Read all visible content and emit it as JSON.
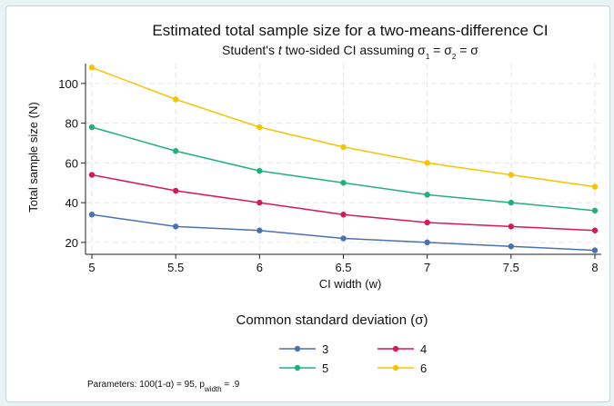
{
  "chart_data": {
    "type": "line",
    "title": "Estimated total sample size for a two-means-difference CI",
    "subtitle": {
      "prefix": "Student's ",
      "italic": "t",
      "rest": " two-sided CI assuming σ",
      "sub1": "1",
      "eq1": " = σ",
      "sub2": "2",
      "eq2": " = σ"
    },
    "xlabel": "CI width (w)",
    "ylabel": "Total sample size (N)",
    "x": [
      5,
      5.5,
      6,
      6.5,
      7,
      7.5,
      8
    ],
    "x_ticks": [
      {
        "value": 5,
        "label": "5"
      },
      {
        "value": 5.5,
        "label": "5.5"
      },
      {
        "value": 6,
        "label": "6"
      },
      {
        "value": 6.5,
        "label": "6.5"
      },
      {
        "value": 7,
        "label": "7"
      },
      {
        "value": 7.5,
        "label": "7.5"
      },
      {
        "value": 8,
        "label": "8"
      }
    ],
    "y_ticks": [
      {
        "value": 20,
        "label": "20"
      },
      {
        "value": 40,
        "label": "40"
      },
      {
        "value": 60,
        "label": "60"
      },
      {
        "value": 80,
        "label": "80"
      },
      {
        "value": 100,
        "label": "100"
      }
    ],
    "xlim": [
      5,
      8
    ],
    "ylim": [
      14,
      110
    ],
    "grid": true,
    "series": [
      {
        "name": "3",
        "color": "#4a72b0",
        "values": [
          34,
          28,
          26,
          22,
          20,
          18,
          16
        ]
      },
      {
        "name": "4",
        "color": "#d6195a",
        "values": [
          54,
          46,
          40,
          34,
          30,
          28,
          26
        ]
      },
      {
        "name": "5",
        "color": "#22b07a",
        "values": [
          78,
          66,
          56,
          50,
          44,
          40,
          36
        ]
      },
      {
        "name": "6",
        "color": "#f5c400",
        "values": [
          108,
          92,
          78,
          68,
          60,
          54,
          48
        ]
      }
    ],
    "legend": {
      "title": "Common standard deviation (σ)",
      "placement": "bottom"
    },
    "note": {
      "prefix": "Parameters: 100(1-α) = 95, p",
      "sub": "width",
      "suffix": " = .9"
    }
  }
}
